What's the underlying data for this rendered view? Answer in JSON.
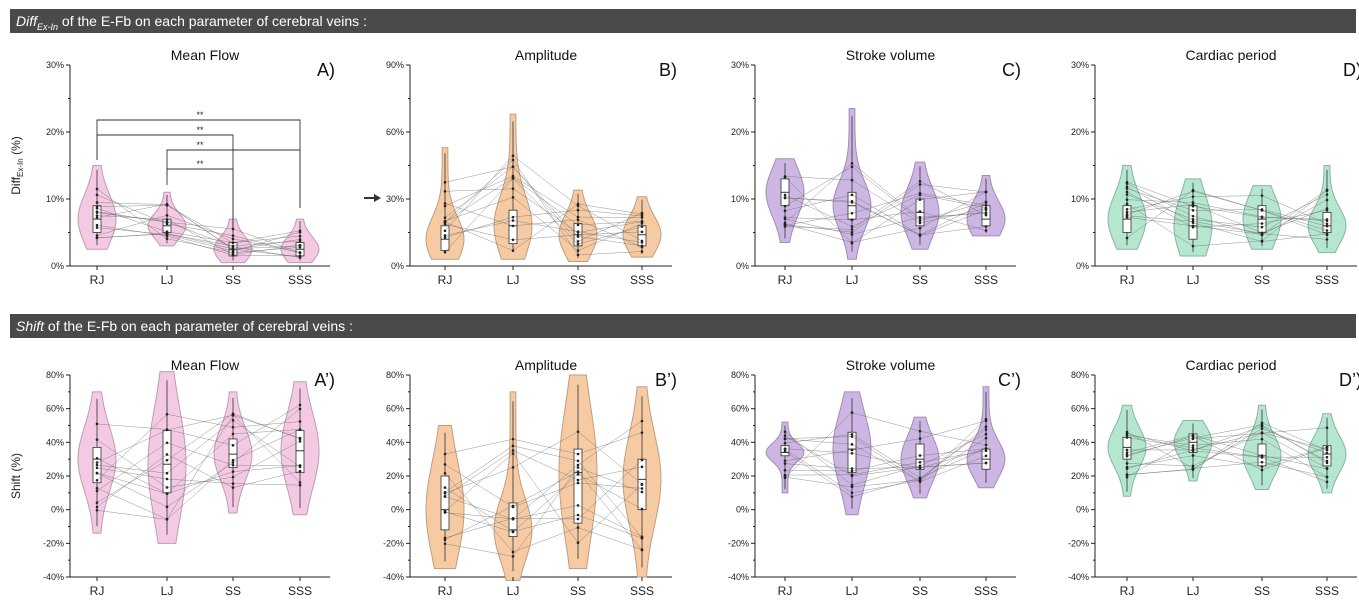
{
  "banners": {
    "top": {
      "italic": "Diff",
      "sub": "Ex-In",
      "rest": " of the E-Fb on each parameter of cerebral veins :"
    },
    "bottom": {
      "italic": "Shift",
      "rest": " of the E-Fb on each parameter of cerebral veins :"
    }
  },
  "colors": {
    "pink": "#f4c9e3",
    "orange": "#f6cba3",
    "purple": "#cdb6e4",
    "green": "#b4e6d0"
  },
  "chart_data": [
    {
      "id": "A",
      "type": "violin",
      "title": "Mean Flow",
      "panel_label": "A)",
      "ylabel_main": "Diff",
      "ylabel_sub": "Ex-In",
      "ylabel_tail": " (%)",
      "categories": [
        "RJ",
        "LJ",
        "SS",
        "SSS"
      ],
      "ylim": [
        0,
        30
      ],
      "yticks": [
        "0%",
        "10%",
        "20%",
        "30%"
      ],
      "color": "pink",
      "medians": [
        7,
        6,
        2.5,
        2.5
      ],
      "q1": [
        5,
        5,
        1.5,
        1.5
      ],
      "q3": [
        9,
        7,
        3.5,
        3.5
      ],
      "ranges": [
        [
          2.5,
          15
        ],
        [
          3,
          11
        ],
        [
          0.5,
          7
        ],
        [
          0.5,
          7
        ]
      ],
      "significance": [
        {
          "label": "**",
          "from": 0,
          "to": 3
        },
        {
          "label": "**",
          "from": 0,
          "to": 2
        },
        {
          "label": "**",
          "from": 1,
          "to": 3
        },
        {
          "label": "**",
          "from": 1,
          "to": 2
        }
      ]
    },
    {
      "id": "B",
      "type": "violin",
      "title": "Amplitude",
      "panel_label": "B)",
      "categories": [
        "RJ",
        "LJ",
        "SS",
        "SSS"
      ],
      "ylim": [
        0,
        90
      ],
      "yticks": [
        "0%",
        "30%",
        "60%",
        "90%"
      ],
      "color": "orange",
      "medians": [
        12,
        18,
        14,
        14
      ],
      "q1": [
        7,
        10,
        9,
        9
      ],
      "q3": [
        18,
        25,
        19,
        18
      ],
      "ranges": [
        [
          3,
          53
        ],
        [
          3,
          68
        ],
        [
          2,
          34
        ],
        [
          4,
          31
        ]
      ]
    },
    {
      "id": "C",
      "type": "violin",
      "title": "Stroke volume",
      "panel_label": "C)",
      "categories": [
        "RJ",
        "LJ",
        "SS",
        "SSS"
      ],
      "ylim": [
        0,
        30
      ],
      "yticks": [
        "0%",
        "10%",
        "20%",
        "30%"
      ],
      "color": "purple",
      "medians": [
        11,
        9,
        8,
        7
      ],
      "q1": [
        9,
        7,
        6,
        6
      ],
      "q3": [
        13,
        11,
        10,
        9
      ],
      "ranges": [
        [
          3.5,
          16
        ],
        [
          1,
          23.5
        ],
        [
          2.5,
          15.5
        ],
        [
          4.5,
          13.5
        ]
      ]
    },
    {
      "id": "D",
      "type": "violin",
      "title": "Cardiac period",
      "panel_label": "D)",
      "categories": [
        "RJ",
        "LJ",
        "SS",
        "SSS"
      ],
      "ylim": [
        0,
        30
      ],
      "yticks": [
        "0%",
        "10%",
        "20%",
        "30%"
      ],
      "color": "green",
      "medians": [
        7,
        6,
        7,
        6
      ],
      "q1": [
        5,
        4,
        5,
        5
      ],
      "q3": [
        9,
        9,
        9,
        8
      ],
      "ranges": [
        [
          2.5,
          15
        ],
        [
          1.5,
          13
        ],
        [
          2.5,
          12
        ],
        [
          2,
          15
        ]
      ]
    },
    {
      "id": "A2",
      "type": "violin",
      "title": "Mean Flow",
      "panel_label": "A’)",
      "ylabel_main": "Shift (%)",
      "categories": [
        "RJ",
        "LJ",
        "SS",
        "SSS"
      ],
      "ylim": [
        -40,
        80
      ],
      "yticks": [
        "-40%",
        "-20%",
        "0%",
        "20%",
        "40%",
        "60%",
        "80%"
      ],
      "color": "pink",
      "medians": [
        30,
        27,
        33,
        35
      ],
      "q1": [
        16,
        10,
        25,
        22
      ],
      "q3": [
        37,
        47,
        42,
        47
      ],
      "ranges": [
        [
          -14,
          70
        ],
        [
          -20,
          82
        ],
        [
          -2,
          70
        ],
        [
          -3,
          76
        ]
      ]
    },
    {
      "id": "B2",
      "type": "violin",
      "title": "Amplitude",
      "panel_label": "B’)",
      "categories": [
        "RJ",
        "LJ",
        "SS",
        "SSS"
      ],
      "ylim": [
        -40,
        80
      ],
      "yticks": [
        "-40%",
        "-20%",
        "0%",
        "20%",
        "40%",
        "60%",
        "80%"
      ],
      "color": "orange",
      "medians": [
        0,
        -12,
        22,
        18
      ],
      "q1": [
        -12,
        -16,
        -8,
        0
      ],
      "q3": [
        20,
        4,
        36,
        30
      ],
      "ranges": [
        [
          -35,
          50
        ],
        [
          -42,
          70
        ],
        [
          -35,
          80
        ],
        [
          -40,
          73
        ]
      ]
    },
    {
      "id": "C2",
      "type": "violin",
      "title": "Stroke volume",
      "panel_label": "C’)",
      "categories": [
        "RJ",
        "LJ",
        "SS",
        "SSS"
      ],
      "ylim": [
        -40,
        80
      ],
      "yticks": [
        "-40%",
        "-20%",
        "0%",
        "20%",
        "40%",
        "60%",
        "80%"
      ],
      "color": "purple",
      "medians": [
        34,
        36,
        30,
        30
      ],
      "q1": [
        32,
        22,
        24,
        24
      ],
      "q3": [
        38,
        46,
        39,
        36
      ],
      "ranges": [
        [
          10,
          52
        ],
        [
          -3,
          70
        ],
        [
          7,
          55
        ],
        [
          13,
          73
        ]
      ]
    },
    {
      "id": "D2",
      "type": "violin",
      "title": "Cardiac period",
      "panel_label": "D’)",
      "categories": [
        "RJ",
        "LJ",
        "SS",
        "SSS"
      ],
      "ylim": [
        -40,
        80
      ],
      "yticks": [
        "-40%",
        "-20%",
        "0%",
        "20%",
        "40%",
        "60%",
        "80%"
      ],
      "color": "green",
      "medians": [
        37,
        40,
        32,
        33
      ],
      "q1": [
        30,
        34,
        26,
        26
      ],
      "q3": [
        43,
        45,
        39,
        38
      ],
      "ranges": [
        [
          8,
          62
        ],
        [
          17,
          53
        ],
        [
          12,
          62
        ],
        [
          10,
          57
        ]
      ]
    }
  ]
}
